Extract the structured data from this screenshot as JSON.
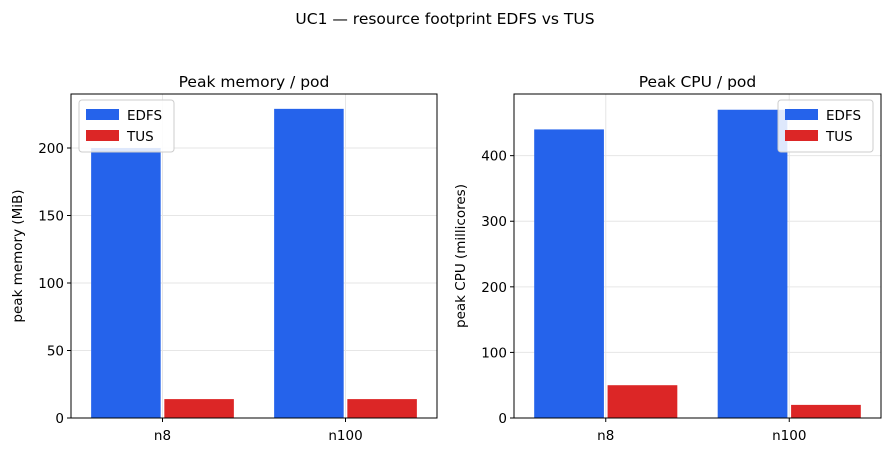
{
  "figure": {
    "suptitle": "UC1 — resource footprint EDFS vs TUS"
  },
  "colors": {
    "EDFS": "#2563eb",
    "TUS": "#dc2626",
    "grid": "#e6e6e6",
    "axis": "#000000"
  },
  "chart_data": [
    {
      "type": "bar",
      "title": "Peak memory / pod",
      "xlabel": "",
      "ylabel": "peak memory (MiB)",
      "categories": [
        "n8",
        "n100"
      ],
      "series": [
        {
          "name": "EDFS",
          "values": [
            200,
            229
          ]
        },
        {
          "name": "TUS",
          "values": [
            14,
            14
          ]
        }
      ],
      "ylim": [
        0,
        240
      ],
      "yticks": [
        0,
        50,
        100,
        150,
        200
      ],
      "grid": true,
      "legend": "upper-left"
    },
    {
      "type": "bar",
      "title": "Peak CPU / pod",
      "xlabel": "",
      "ylabel": "peak CPU (millicores)",
      "categories": [
        "n8",
        "n100"
      ],
      "series": [
        {
          "name": "EDFS",
          "values": [
            440,
            470
          ]
        },
        {
          "name": "TUS",
          "values": [
            50,
            20
          ]
        }
      ],
      "ylim": [
        0,
        494
      ],
      "yticks": [
        0,
        100,
        200,
        300,
        400
      ],
      "grid": true,
      "legend": "upper-right"
    }
  ]
}
